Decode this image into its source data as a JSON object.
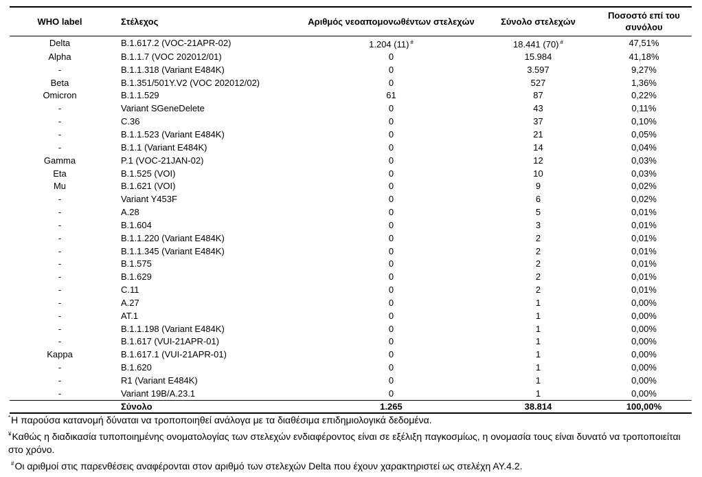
{
  "table": {
    "headers": {
      "who": "WHO label",
      "strain": "Στέλεχος",
      "new_isolated": "Αριθμός νεοαπομονωθέντων στελεχών",
      "total": "Σύνολο στελεχών",
      "percent": "Ποσοστό επί του συνόλου"
    },
    "rows": [
      {
        "who": "Delta",
        "strain": "B.1.617.2 (VOC-21APR-02)",
        "new_isolated": "1.204 (11)",
        "new_mark": "#",
        "total": "18.441 (70)",
        "total_mark": "#",
        "percent": "47,51%"
      },
      {
        "who": "Alpha",
        "strain": "B.1.1.7 (VOC 202012/01)",
        "new_isolated": "0",
        "total": "15.984",
        "percent": "41,18%"
      },
      {
        "who": "-",
        "strain": "B.1.1.318 (Variant E484K)",
        "new_isolated": "0",
        "total": "3.597",
        "percent": "9,27%"
      },
      {
        "who": "Beta",
        "strain": "B.1.351/501Y.V2 (VOC 202012/02)",
        "new_isolated": "0",
        "total": "527",
        "percent": "1,36%"
      },
      {
        "who": "Omicron",
        "strain": "B.1.1.529",
        "new_isolated": "61",
        "total": "87",
        "percent": "0,22%"
      },
      {
        "who": "-",
        "strain": "Variant SGeneDelete",
        "new_isolated": "0",
        "total": "43",
        "percent": "0,11%"
      },
      {
        "who": "-",
        "strain": "C.36",
        "new_isolated": "0",
        "total": "37",
        "percent": "0,10%"
      },
      {
        "who": "-",
        "strain": "B.1.1.523 (Variant E484K)",
        "new_isolated": "0",
        "total": "21",
        "percent": "0,05%"
      },
      {
        "who": "-",
        "strain": "B.1.1 (Variant E484K)",
        "new_isolated": "0",
        "total": "14",
        "percent": "0,04%"
      },
      {
        "who": "Gamma",
        "strain": "P.1 (VOC-21JAN-02)",
        "new_isolated": "0",
        "total": "12",
        "percent": "0,03%"
      },
      {
        "who": "Eta",
        "strain": "B.1.525 (VOI)",
        "new_isolated": "0",
        "total": "10",
        "percent": "0,03%"
      },
      {
        "who": "Mu",
        "strain": "B.1.621 (VOI)",
        "new_isolated": "0",
        "total": "9",
        "percent": "0,02%"
      },
      {
        "who": "-",
        "strain": "Variant Y453F",
        "new_isolated": "0",
        "total": "6",
        "percent": "0,02%"
      },
      {
        "who": "-",
        "strain": "A.28",
        "new_isolated": "0",
        "total": "5",
        "percent": "0,01%"
      },
      {
        "who": "-",
        "strain": "B.1.604",
        "new_isolated": "0",
        "total": "3",
        "percent": "0,01%"
      },
      {
        "who": "-",
        "strain": "B.1.1.220 (Variant E484K)",
        "new_isolated": "0",
        "total": "2",
        "percent": "0,01%"
      },
      {
        "who": "-",
        "strain": "B.1.1.345 (Variant E484K)",
        "new_isolated": "0",
        "total": "2",
        "percent": "0,01%"
      },
      {
        "who": "-",
        "strain": "B.1.575",
        "new_isolated": "0",
        "total": "2",
        "percent": "0,01%"
      },
      {
        "who": "-",
        "strain": "B.1.629",
        "new_isolated": "0",
        "total": "2",
        "percent": "0,01%"
      },
      {
        "who": "-",
        "strain": "C.11",
        "new_isolated": "0",
        "total": "2",
        "percent": "0,01%"
      },
      {
        "who": "-",
        "strain": "A.27",
        "new_isolated": "0",
        "total": "1",
        "percent": "0,00%"
      },
      {
        "who": "-",
        "strain": "AT.1",
        "new_isolated": "0",
        "total": "1",
        "percent": "0,00%"
      },
      {
        "who": "-",
        "strain": "B.1.1.198 (Variant E484K)",
        "new_isolated": "0",
        "total": "1",
        "percent": "0,00%"
      },
      {
        "who": "-",
        "strain": "B.1.617 (VUI-21APR-01)",
        "new_isolated": "0",
        "total": "1",
        "percent": "0,00%"
      },
      {
        "who": "Kappa",
        "strain": "B.1.617.1 (VUI-21APR-01)",
        "new_isolated": "0",
        "total": "1",
        "percent": "0,00%"
      },
      {
        "who": "-",
        "strain": "B.1.620",
        "new_isolated": "0",
        "total": "1",
        "percent": "0,00%"
      },
      {
        "who": "-",
        "strain": "R1 (Variant E484K)",
        "new_isolated": "0",
        "total": "1",
        "percent": "0,00%"
      },
      {
        "who": "-",
        "strain": "Variant 19B/A.23.1",
        "new_isolated": "0",
        "total": "1",
        "percent": "0,00%"
      }
    ],
    "totals": {
      "label": "Σύνολο",
      "new_isolated": "1.265",
      "total": "38.814",
      "percent": "100,00%"
    }
  },
  "footnotes": [
    {
      "mark": "*",
      "text": "Η παρούσα κατανομή δύναται να τροποποιηθεί ανάλογα με τα διαθέσιμα επιδημιολογικά δεδομένα."
    },
    {
      "mark": "¥",
      "text": "Καθώς η διαδικασία τυποποιημένης ονοματολογίας των στελεχών ενδιαφέροντος είναι σε εξέλιξη παγκοσμίως, η ονομασία τους είναι δυνατό να τροποποιείται στο χρόνο."
    },
    {
      "mark": "#",
      "text": "Οι αριθμοί στις παρενθέσεις αναφέρονται στον αριθμό των στελεχών Delta που έχουν χαρακτηριστεί ως στελέχη ΑΥ.4.2."
    }
  ]
}
